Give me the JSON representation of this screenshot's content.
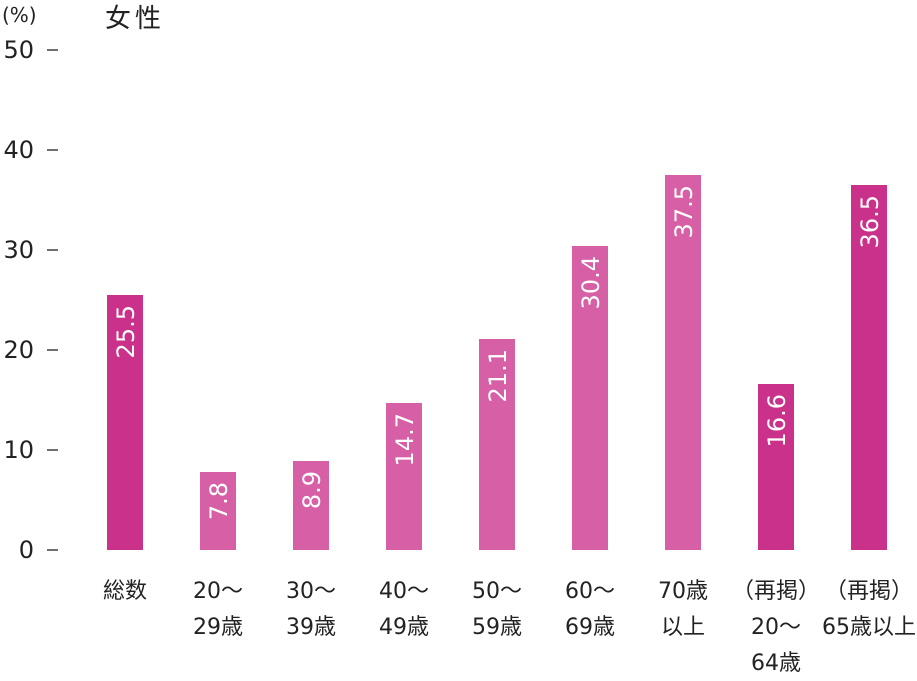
{
  "chart_data": {
    "type": "bar",
    "title": "女性",
    "ylabel": "(%)",
    "xlabel": "",
    "ylim": [
      0,
      50
    ],
    "yticks": [
      0,
      10,
      20,
      30,
      40,
      50
    ],
    "grid": false,
    "categories": [
      [
        "総数"
      ],
      [
        "20～",
        "29歳"
      ],
      [
        "30～",
        "39歳"
      ],
      [
        "40～",
        "49歳"
      ],
      [
        "50～",
        "59歳"
      ],
      [
        "60～",
        "69歳"
      ],
      [
        "70歳",
        "以上"
      ],
      [
        "（再掲）",
        "20～",
        "64歳"
      ],
      [
        "（再掲）",
        "65歳以上"
      ]
    ],
    "values": [
      25.5,
      7.8,
      8.9,
      14.7,
      21.1,
      30.4,
      37.5,
      16.6,
      36.5
    ],
    "bar_colors": [
      "#c9318a",
      "#d65fa6",
      "#d65fa6",
      "#d65fa6",
      "#d65fa6",
      "#d65fa6",
      "#d65fa6",
      "#c9318a",
      "#c9318a"
    ]
  }
}
